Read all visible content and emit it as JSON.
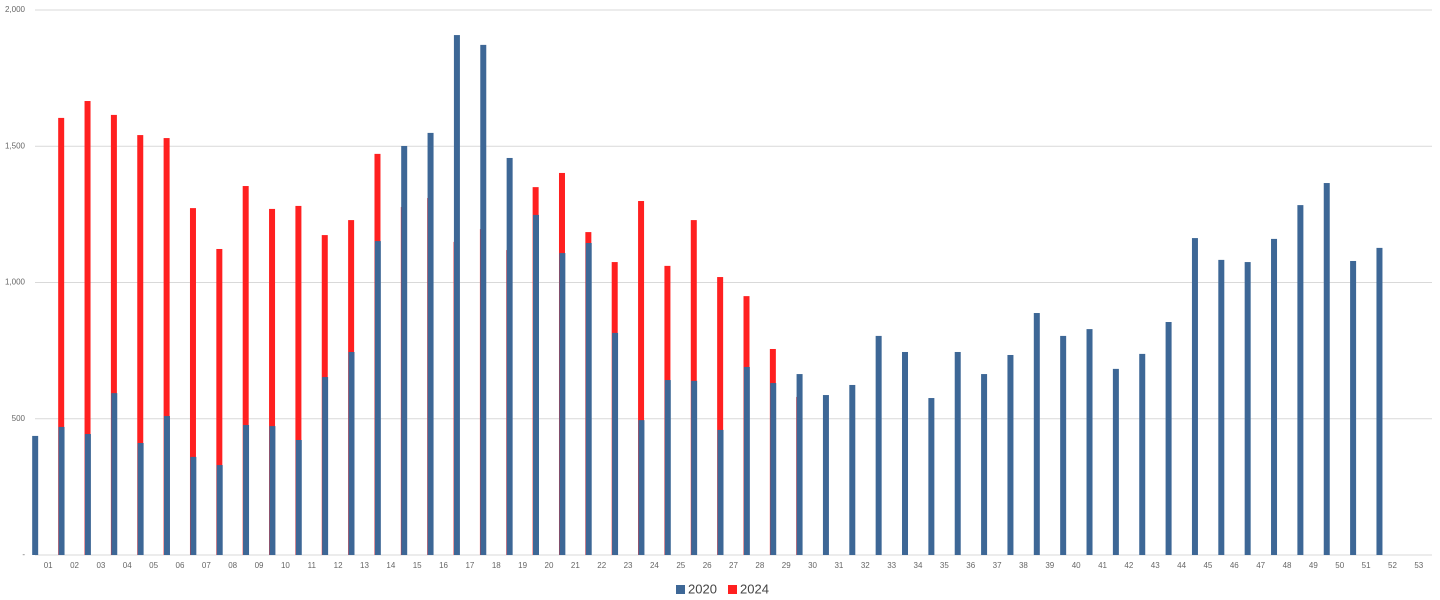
{
  "chart_data": {
    "type": "bar",
    "categories": [
      "01",
      "02",
      "03",
      "04",
      "05",
      "06",
      "07",
      "08",
      "09",
      "10",
      "11",
      "12",
      "13",
      "14",
      "15",
      "16",
      "17",
      "18",
      "19",
      "20",
      "21",
      "22",
      "23",
      "24",
      "25",
      "26",
      "27",
      "28",
      "29",
      "30",
      "31",
      "32",
      "33",
      "34",
      "35",
      "36",
      "37",
      "38",
      "39",
      "40",
      "41",
      "42",
      "43",
      "44",
      "45",
      "46",
      "47",
      "48",
      "49",
      "50",
      "51",
      "52",
      "53"
    ],
    "series": [
      {
        "name": "2020",
        "color": "#3d6796",
        "values": [
          437,
          470,
          444,
          594,
          411,
          510,
          360,
          330,
          477,
          473,
          422,
          653,
          745,
          1152,
          1501,
          1549,
          1908,
          1872,
          1457,
          1248,
          1108,
          1145,
          815,
          495,
          642,
          639,
          459,
          690,
          631,
          664,
          587,
          624,
          804,
          745,
          576,
          745,
          664,
          734,
          888,
          804,
          829,
          683,
          738,
          855,
          1163,
          1083,
          1075,
          1160,
          1284,
          1365,
          1079,
          1127,
          null
        ]
      },
      {
        "name": "2024",
        "color": "#ff2020",
        "values": [
          1604,
          1666,
          1615,
          1541,
          1530,
          1273,
          1123,
          1354,
          1270,
          1281,
          1174,
          1229,
          1472,
          1277,
          1310,
          1149,
          1196,
          1119,
          1350,
          1402,
          1185,
          1075,
          1299,
          1061,
          1229,
          1020,
          950,
          756,
          580,
          null,
          null,
          null,
          null,
          null,
          null,
          null,
          null,
          null,
          null,
          null,
          null,
          null,
          null,
          null,
          null,
          null,
          null,
          null,
          null,
          null,
          null,
          null,
          null
        ]
      }
    ],
    "ylim": [
      0,
      2000
    ],
    "yticks": [
      {
        "value": 0,
        "label": "-"
      },
      500,
      {
        "value": 1000,
        "label": "1,000"
      },
      {
        "value": 1500,
        "label": "1,500"
      },
      {
        "value": 2000,
        "label": "2,000"
      }
    ],
    "grid": true,
    "legend": "bottom"
  }
}
